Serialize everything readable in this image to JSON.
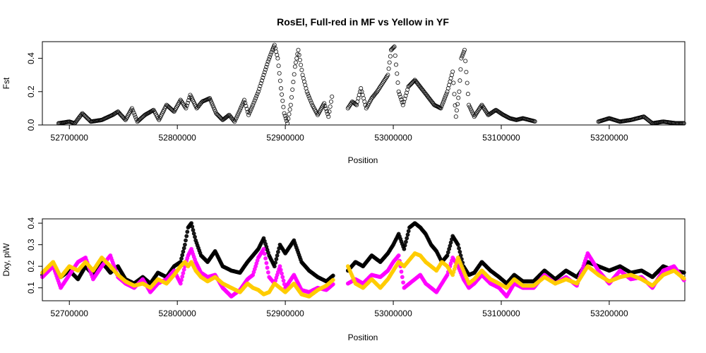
{
  "chart_data": [
    {
      "type": "scatter",
      "title": "RosEl, Full-red in MF vs Yellow in YF",
      "xlabel": "Position",
      "ylabel": "Fst",
      "xlim": [
        52675000,
        53270000
      ],
      "ylim": [
        0,
        0.5
      ],
      "xticks": [
        52700000,
        52800000,
        52900000,
        53000000,
        53100000,
        53200000
      ],
      "xtick_labels": [
        "52700000",
        "52800000",
        "52900000",
        "53000000",
        "53100000",
        "53200000"
      ],
      "yticks": [
        0.0,
        0.2,
        0.4
      ],
      "ytick_labels": [
        "0.0",
        "0.2",
        "0.4"
      ],
      "grid": false,
      "series": [
        {
          "color": "#000000",
          "marker": "open-circle",
          "x": [
            52675000,
            52690000,
            52700000,
            52705000,
            52712000,
            52720000,
            52730000,
            52740000,
            52745000,
            52752000,
            52758000,
            52763000,
            52770000,
            52778000,
            52783000,
            52790000,
            52797000,
            52803000,
            52808000,
            52812000,
            52818000,
            52823000,
            52830000,
            52836000,
            52842000,
            52848000,
            52853000,
            52858000,
            52862000,
            52866000,
            52870000,
            52875000,
            52880000,
            52884000,
            52888000,
            52890000,
            52893000,
            52896000,
            52899000,
            52902000,
            52905000,
            52909000,
            52912000,
            52916000,
            52920000,
            52925000,
            52930000,
            52936000,
            52940000,
            52944000,
            52958000,
            52962000,
            52966000,
            52970000,
            52975000,
            52980000,
            52985000,
            52990000,
            52995000,
            52998000,
            53001000,
            53005000,
            53009000,
            53014000,
            53020000,
            53026000,
            53032000,
            53038000,
            53044000,
            53050000,
            53055000,
            53058000,
            53061000,
            53063000,
            53066000,
            53070000,
            53075000,
            53082000,
            53088000,
            53095000,
            53102000,
            53108000,
            53114000,
            53120000,
            53132000,
            53145000,
            53160000,
            53175000,
            53190000,
            53200000,
            53210000,
            53220000,
            53232000,
            53240000,
            53250000,
            53262000,
            53270000
          ],
          "y": [
            0.015,
            0.01,
            0.02,
            0.01,
            0.07,
            0.02,
            0.03,
            0.06,
            0.08,
            0.03,
            0.1,
            0.02,
            0.06,
            0.09,
            0.03,
            0.12,
            0.08,
            0.15,
            0.1,
            0.18,
            0.1,
            0.14,
            0.16,
            0.07,
            0.03,
            0.06,
            0.02,
            0.09,
            0.15,
            0.06,
            0.12,
            0.2,
            0.3,
            0.38,
            0.45,
            0.48,
            0.4,
            0.22,
            0.07,
            0.01,
            0.12,
            0.35,
            0.45,
            0.3,
            0.2,
            0.12,
            0.06,
            0.13,
            0.05,
            0.2,
            0.1,
            0.14,
            0.12,
            0.22,
            0.1,
            0.16,
            0.2,
            0.25,
            0.3,
            0.45,
            0.47,
            0.2,
            0.12,
            0.23,
            0.27,
            0.22,
            0.17,
            0.12,
            0.1,
            0.2,
            0.32,
            0.05,
            0.2,
            0.4,
            0.45,
            0.12,
            0.05,
            0.12,
            0.06,
            0.09,
            0.06,
            0.04,
            0.03,
            0.04,
            0.02,
            0.03,
            0.02,
            0.01,
            0.02,
            0.04,
            0.02,
            0.03,
            0.05,
            0.01,
            0.02,
            0.01,
            0.01
          ]
        }
      ]
    },
    {
      "type": "scatter",
      "title": "",
      "xlabel": "Position",
      "ylabel": "Dxy, piW",
      "xlim": [
        52675000,
        53270000
      ],
      "ylim": [
        0.04,
        0.42
      ],
      "xticks": [
        52700000,
        52800000,
        52900000,
        53000000,
        53100000,
        53200000
      ],
      "xtick_labels": [
        "52700000",
        "52800000",
        "52900000",
        "53000000",
        "53100000",
        "53200000"
      ],
      "yticks": [
        0.1,
        0.2,
        0.3,
        0.4
      ],
      "ytick_labels": [
        "0.1",
        "0.2",
        "0.3",
        "0.4"
      ],
      "grid": false,
      "series": [
        {
          "color": "#000000",
          "marker": "filled-circle",
          "x": [
            52675000,
            52685000,
            52692000,
            52700000,
            52708000,
            52715000,
            52722000,
            52730000,
            52738000,
            52745000,
            52752000,
            52760000,
            52768000,
            52775000,
            52782000,
            52790000,
            52797000,
            52803000,
            52807000,
            52810000,
            52813000,
            52817000,
            52822000,
            52828000,
            52835000,
            52842000,
            52850000,
            52858000,
            52865000,
            52870000,
            52875000,
            52880000,
            52885000,
            52890000,
            52895000,
            52900000,
            52908000,
            52915000,
            52922000,
            52930000,
            52938000,
            52945000,
            52958000,
            52965000,
            52972000,
            52980000,
            52988000,
            52995000,
            53000000,
            53005000,
            53010000,
            53015000,
            53020000,
            53025000,
            53030000,
            53035000,
            53040000,
            53045000,
            53050000,
            53055000,
            53060000,
            53065000,
            53070000,
            53075000,
            53082000,
            53090000,
            53098000,
            53105000,
            53112000,
            53120000,
            53130000,
            53140000,
            53150000,
            53160000,
            53170000,
            53180000,
            53190000,
            53200000,
            53210000,
            53220000,
            53230000,
            53240000,
            53250000,
            53260000,
            53270000
          ],
          "y": [
            0.16,
            0.2,
            0.15,
            0.18,
            0.14,
            0.2,
            0.16,
            0.22,
            0.17,
            0.2,
            0.14,
            0.12,
            0.15,
            0.12,
            0.17,
            0.15,
            0.2,
            0.22,
            0.3,
            0.38,
            0.4,
            0.32,
            0.25,
            0.22,
            0.27,
            0.2,
            0.18,
            0.17,
            0.22,
            0.25,
            0.28,
            0.33,
            0.25,
            0.2,
            0.3,
            0.26,
            0.32,
            0.22,
            0.18,
            0.15,
            0.13,
            0.16,
            0.18,
            0.22,
            0.2,
            0.25,
            0.22,
            0.26,
            0.3,
            0.35,
            0.28,
            0.38,
            0.4,
            0.38,
            0.35,
            0.3,
            0.27,
            0.22,
            0.25,
            0.34,
            0.3,
            0.2,
            0.16,
            0.17,
            0.22,
            0.18,
            0.15,
            0.12,
            0.16,
            0.13,
            0.13,
            0.18,
            0.14,
            0.18,
            0.15,
            0.22,
            0.2,
            0.18,
            0.2,
            0.17,
            0.18,
            0.15,
            0.2,
            0.18,
            0.17
          ]
        },
        {
          "color": "#ff00ff",
          "marker": "filled-circle",
          "x": [
            52675000,
            52685000,
            52692000,
            52700000,
            52708000,
            52715000,
            52722000,
            52730000,
            52738000,
            52745000,
            52752000,
            52760000,
            52768000,
            52775000,
            52782000,
            52790000,
            52797000,
            52803000,
            52807000,
            52810000,
            52813000,
            52817000,
            52822000,
            52828000,
            52835000,
            52842000,
            52850000,
            52858000,
            52865000,
            52870000,
            52875000,
            52880000,
            52885000,
            52890000,
            52895000,
            52900000,
            52908000,
            52915000,
            52922000,
            52930000,
            52938000,
            52945000,
            52958000,
            52965000,
            52972000,
            52980000,
            52988000,
            52995000,
            53000000,
            53005000,
            53010000,
            53015000,
            53020000,
            53025000,
            53030000,
            53035000,
            53040000,
            53045000,
            53050000,
            53055000,
            53060000,
            53065000,
            53070000,
            53075000,
            53082000,
            53090000,
            53098000,
            53105000,
            53112000,
            53120000,
            53130000,
            53140000,
            53150000,
            53160000,
            53170000,
            53180000,
            53190000,
            53200000,
            53210000,
            53220000,
            53230000,
            53240000,
            53250000,
            53260000,
            53270000
          ],
          "y": [
            0.15,
            0.2,
            0.1,
            0.16,
            0.22,
            0.24,
            0.14,
            0.2,
            0.25,
            0.15,
            0.12,
            0.1,
            0.14,
            0.08,
            0.12,
            0.14,
            0.18,
            0.12,
            0.2,
            0.25,
            0.28,
            0.22,
            0.17,
            0.15,
            0.16,
            0.1,
            0.06,
            0.09,
            0.14,
            0.16,
            0.24,
            0.28,
            0.15,
            0.12,
            0.2,
            0.1,
            0.16,
            0.09,
            0.08,
            0.1,
            0.09,
            0.12,
            0.12,
            0.14,
            0.12,
            0.16,
            0.15,
            0.18,
            0.22,
            0.25,
            0.1,
            0.12,
            0.14,
            0.16,
            0.12,
            0.1,
            0.08,
            0.12,
            0.16,
            0.24,
            0.2,
            0.14,
            0.1,
            0.12,
            0.16,
            0.12,
            0.1,
            0.06,
            0.12,
            0.1,
            0.1,
            0.16,
            0.12,
            0.15,
            0.11,
            0.26,
            0.18,
            0.12,
            0.18,
            0.14,
            0.15,
            0.1,
            0.18,
            0.2,
            0.13
          ]
        },
        {
          "color": "#ffcc00",
          "marker": "filled-circle",
          "x": [
            52675000,
            52685000,
            52692000,
            52700000,
            52708000,
            52715000,
            52722000,
            52730000,
            52738000,
            52745000,
            52752000,
            52760000,
            52768000,
            52775000,
            52782000,
            52790000,
            52797000,
            52803000,
            52807000,
            52810000,
            52813000,
            52817000,
            52822000,
            52828000,
            52835000,
            52842000,
            52850000,
            52858000,
            52865000,
            52870000,
            52875000,
            52880000,
            52885000,
            52890000,
            52895000,
            52900000,
            52908000,
            52915000,
            52922000,
            52930000,
            52938000,
            52945000,
            52958000,
            52965000,
            52972000,
            52980000,
            52988000,
            52995000,
            53000000,
            53005000,
            53010000,
            53015000,
            53020000,
            53025000,
            53030000,
            53035000,
            53040000,
            53045000,
            53050000,
            53055000,
            53060000,
            53065000,
            53070000,
            53075000,
            53082000,
            53090000,
            53098000,
            53105000,
            53112000,
            53120000,
            53130000,
            53140000,
            53150000,
            53160000,
            53170000,
            53180000,
            53190000,
            53200000,
            53210000,
            53220000,
            53230000,
            53240000,
            53250000,
            53260000,
            53270000
          ],
          "y": [
            0.17,
            0.22,
            0.15,
            0.2,
            0.18,
            0.22,
            0.18,
            0.24,
            0.2,
            0.16,
            0.13,
            0.11,
            0.12,
            0.1,
            0.14,
            0.12,
            0.16,
            0.2,
            0.22,
            0.2,
            0.22,
            0.18,
            0.15,
            0.13,
            0.15,
            0.12,
            0.1,
            0.08,
            0.12,
            0.1,
            0.09,
            0.07,
            0.08,
            0.12,
            0.1,
            0.08,
            0.12,
            0.07,
            0.06,
            0.09,
            0.11,
            0.14,
            0.2,
            0.12,
            0.1,
            0.14,
            0.1,
            0.14,
            0.18,
            0.22,
            0.2,
            0.23,
            0.26,
            0.25,
            0.22,
            0.2,
            0.18,
            0.22,
            0.2,
            0.16,
            0.24,
            0.18,
            0.12,
            0.14,
            0.18,
            0.14,
            0.12,
            0.1,
            0.14,
            0.11,
            0.11,
            0.15,
            0.12,
            0.14,
            0.12,
            0.2,
            0.16,
            0.13,
            0.15,
            0.16,
            0.14,
            0.11,
            0.16,
            0.18,
            0.14
          ]
        }
      ]
    }
  ]
}
